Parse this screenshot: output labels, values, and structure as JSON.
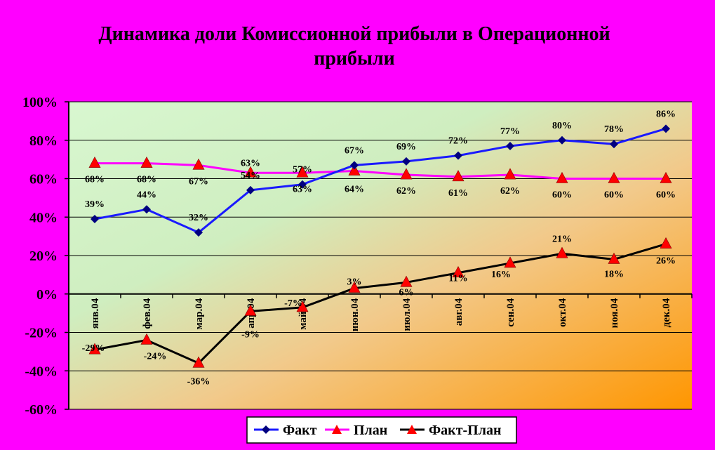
{
  "colors": {
    "background": "#ff00ff",
    "plot_top_left": "#d8f7d0",
    "plot_bottom_right": "#ff9a00",
    "fakt": "#1a1aff",
    "plan": "#ff00ff",
    "diff": "#000000",
    "marker_fakt": "#000080",
    "marker_triangle": "#ff0000"
  },
  "chart_data": {
    "type": "line",
    "title": "Динамика доли Комиссионной прибыли в Операционной прибыли",
    "title_lines": [
      "Динамика доли Комиссионной прибыли в Операционной",
      "прибыли"
    ],
    "categories": [
      "янв.04",
      "фев.04",
      "мар.04",
      "апр.04",
      "май.04",
      "июн.04",
      "июл.04",
      "авг.04",
      "сен.04",
      "окт.04",
      "ноя.04",
      "дек.04"
    ],
    "ylim": [
      -60,
      100
    ],
    "yticks": [
      100,
      80,
      60,
      40,
      20,
      0,
      -20,
      -40,
      -60
    ],
    "ytick_labels": [
      "100%",
      "80%",
      "60%",
      "40%",
      "20%",
      "0%",
      "-20%",
      "-40%",
      "-60%"
    ],
    "grid": true,
    "legend_position": "bottom",
    "series": [
      {
        "name": "Факт",
        "color": "#1a1aff",
        "marker": "diamond-icon",
        "values": [
          39,
          44,
          32,
          54,
          57,
          67,
          69,
          72,
          77,
          80,
          78,
          86
        ],
        "labels": [
          "39%",
          "44%",
          "32%",
          "54%",
          "57%",
          "67%",
          "69%",
          "72%",
          "77%",
          "80%",
          "78%",
          "86%"
        ]
      },
      {
        "name": "План",
        "color": "#ff00ff",
        "marker": "triangle-icon",
        "values": [
          68,
          68,
          67,
          63,
          63,
          64,
          62,
          61,
          62,
          60,
          60,
          60
        ],
        "labels": [
          "68%",
          "68%",
          "67%",
          "63%",
          "63%",
          "64%",
          "62%",
          "61%",
          "62%",
          "60%",
          "60%",
          "60%"
        ]
      },
      {
        "name": "Факт-План",
        "color": "#000000",
        "marker": "triangle-icon",
        "values": [
          -29,
          -24,
          -36,
          -9,
          -7,
          3,
          6,
          11,
          16,
          21,
          18,
          26
        ],
        "labels": [
          "-29%",
          "-24%",
          "-36%",
          "-9%",
          "-7%",
          "3%",
          "6%",
          "11%",
          "16%",
          "21%",
          "18%",
          "26%"
        ]
      }
    ]
  }
}
